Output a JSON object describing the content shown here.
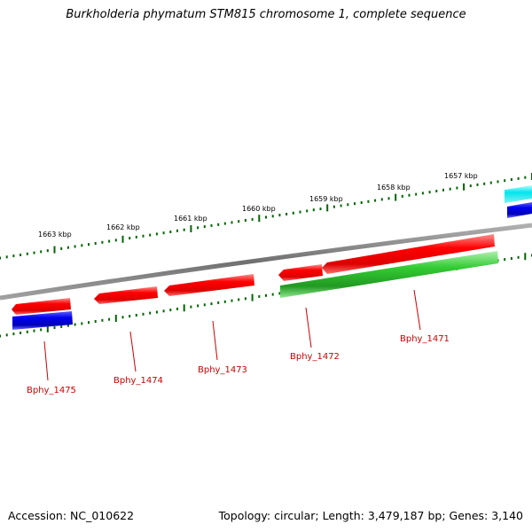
{
  "title": "Burkholderia phymatum STM815 chromosome 1, complete sequence",
  "footer": {
    "accession": "Accession: NC_010622",
    "summary": "Topology: circular; Length: 3,479,187 bp; Genes: 3,140"
  },
  "colors": {
    "backbone": "#808080",
    "forward_gene": "#ff0000",
    "reverse_gene": "#ff0000",
    "cds_forward": "#33cc33",
    "cds_reverse": "#0000ee",
    "feature_cyan": "#00e5ee",
    "tick": "#006600",
    "label": "#cc0000"
  },
  "kbp_ticks": [
    "1663 kbp",
    "1662 kbp",
    "1661 kbp",
    "1660 kbp",
    "1659 kbp",
    "1658 kbp",
    "1657 kbp"
  ],
  "genes": [
    {
      "label": "Bphy_1475"
    },
    {
      "label": "Bphy_1474"
    },
    {
      "label": "Bphy_1473"
    },
    {
      "label": "Bphy_1472"
    },
    {
      "label": "Bphy_1471"
    }
  ]
}
